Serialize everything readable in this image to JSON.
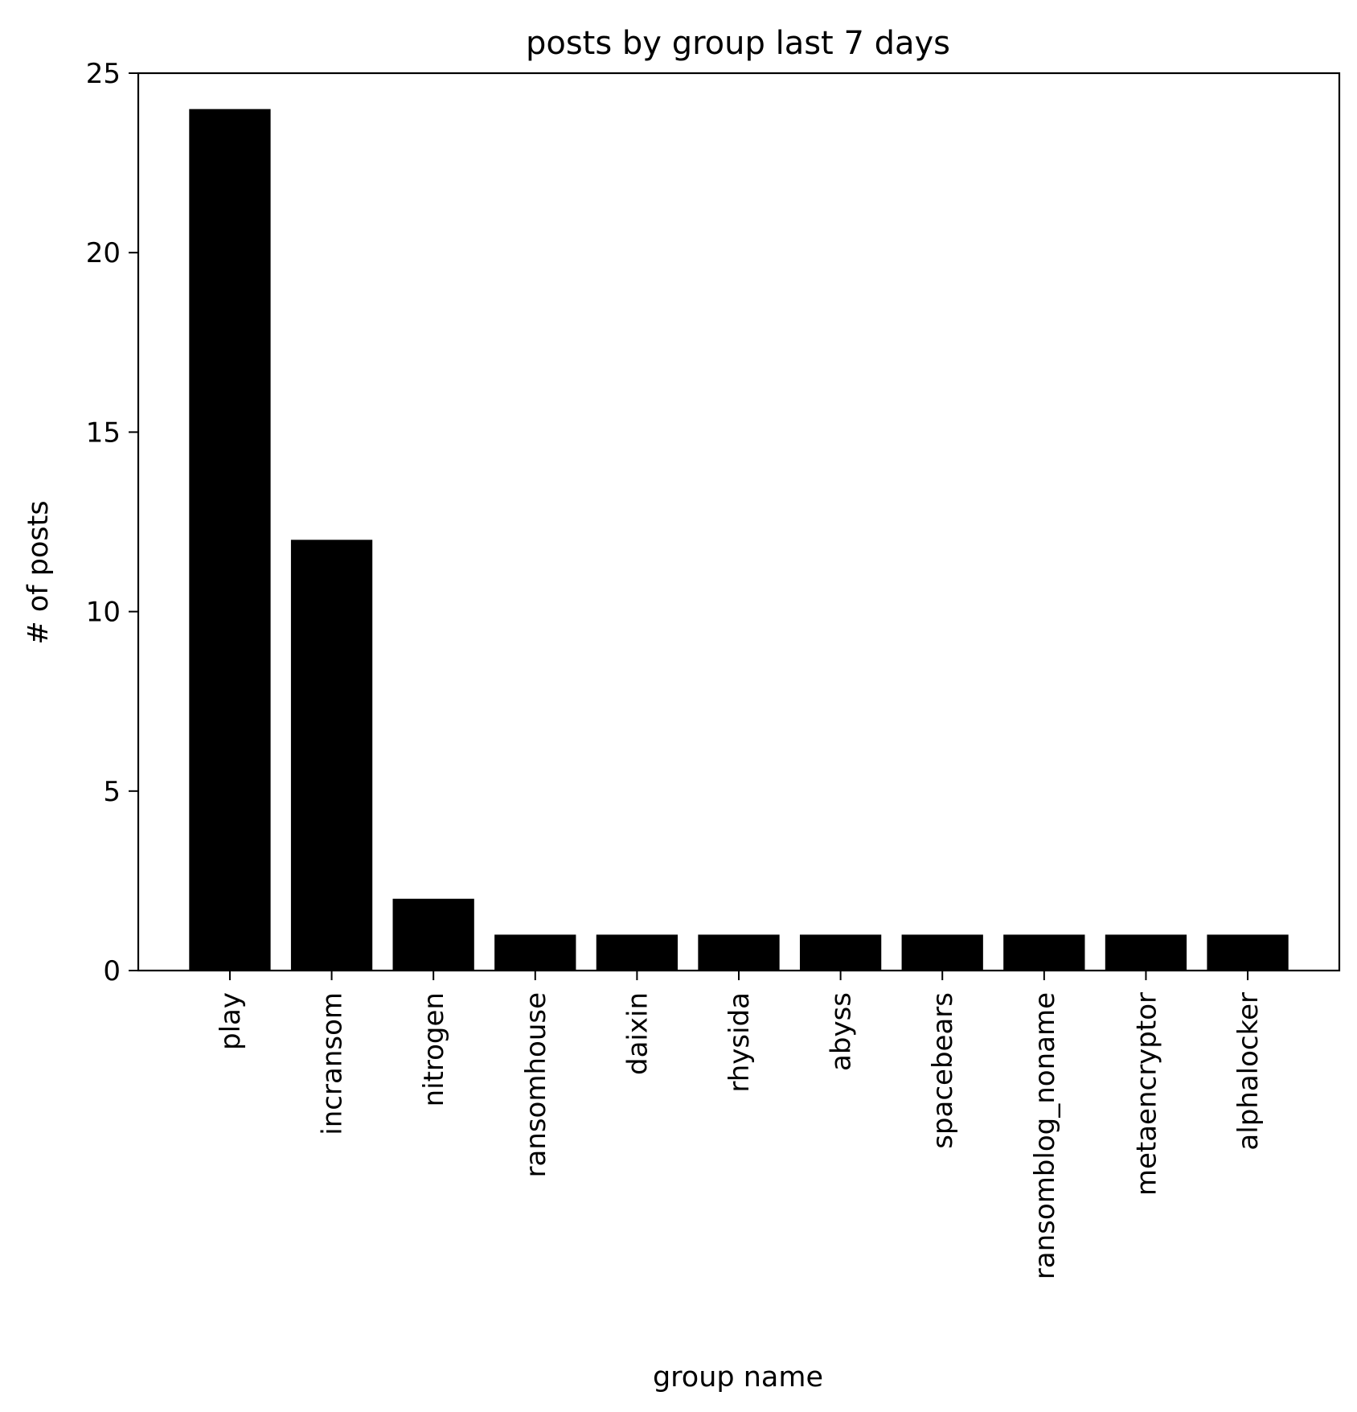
{
  "chart_data": {
    "type": "bar",
    "title": "posts by group last 7 days",
    "xlabel": "group name",
    "ylabel": "# of posts",
    "categories": [
      "play",
      "incransom",
      "nitrogen",
      "ransomhouse",
      "daixin",
      "rhysida",
      "abyss",
      "spacebears",
      "ransomblog_noname",
      "metaencryptor",
      "alphalocker"
    ],
    "values": [
      24,
      12,
      2,
      1,
      1,
      1,
      1,
      1,
      1,
      1,
      1
    ],
    "ylim": [
      0,
      25
    ],
    "yticks": [
      0,
      5,
      10,
      15,
      20,
      25
    ],
    "grid": false,
    "legend": "none",
    "bar_color": "#000000"
  }
}
